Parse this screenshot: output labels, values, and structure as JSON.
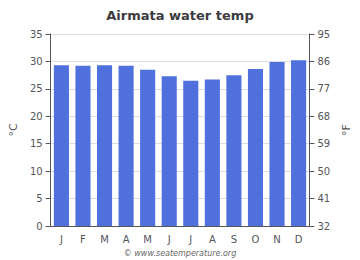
{
  "chart_data": {
    "type": "bar",
    "title": "Airmata water temp",
    "categories": [
      "J",
      "F",
      "M",
      "A",
      "M",
      "J",
      "J",
      "A",
      "S",
      "O",
      "N",
      "D"
    ],
    "values": [
      29.3,
      29.2,
      29.3,
      29.2,
      28.5,
      27.3,
      26.5,
      26.7,
      27.5,
      28.6,
      29.9,
      30.2
    ],
    "ylim": [
      0,
      35
    ],
    "yticks": [
      0,
      5,
      10,
      15,
      20,
      25,
      30,
      35
    ],
    "ylabel": "°C",
    "y2lim": [
      32,
      95
    ],
    "y2ticks": [
      32,
      41,
      50,
      59,
      68,
      77,
      86,
      95
    ],
    "y2label": "°F",
    "annotations": [
      "© www.seatemperature.org"
    ],
    "grid": true
  }
}
